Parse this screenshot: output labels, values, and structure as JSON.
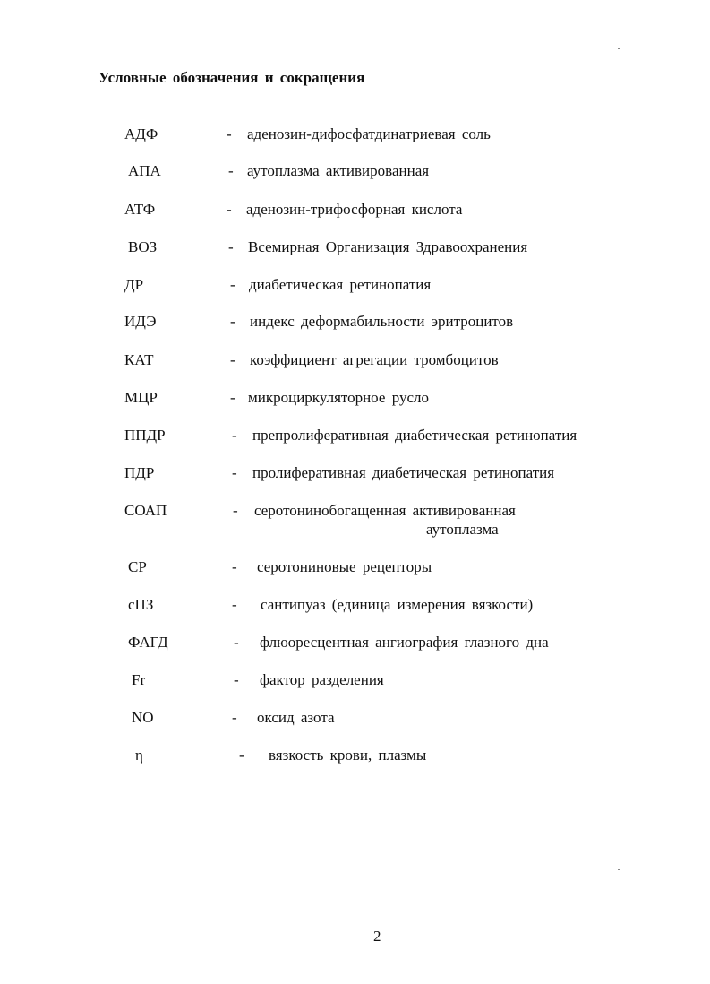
{
  "title": "Условные обозначения и сокращения",
  "entries": [
    {
      "abbr": "АДФ",
      "definition": "аденозин-дифосфатдинатриевая соль"
    },
    {
      "abbr": "АПА",
      "definition": "аутоплазма активированная"
    },
    {
      "abbr": "АТФ",
      "definition": "аденозин-трифосфорная кислота"
    },
    {
      "abbr": "ВОЗ",
      "definition": "Всемирная Организация Здравоохранения"
    },
    {
      "abbr": "ДР",
      "definition": "диабетическая ретинопатия"
    },
    {
      "abbr": "ИДЭ",
      "definition": "индекс деформабильности эритроцитов"
    },
    {
      "abbr": "КАТ",
      "definition": "коэффициент агрегации тромбоцитов"
    },
    {
      "abbr": "МЦР",
      "definition": "микроциркуляторное русло"
    },
    {
      "abbr": "ППДР",
      "definition": "препролиферативная диабетическая ретинопатия"
    },
    {
      "abbr": "ПДР",
      "definition": "пролиферативная диабетическая ретинопатия"
    },
    {
      "abbr": "СОАП",
      "definition": "серотонинобогащенная активированная",
      "definition_cont": "аутоплазма"
    },
    {
      "abbr": "СР",
      "definition": "серотониновые рецепторы"
    },
    {
      "abbr": "сПЗ",
      "definition": "сантипуаз (единица измерения вязкости)"
    },
    {
      "abbr": "ФАГД",
      "definition": "флюоресцентная ангиография глазного дна"
    },
    {
      "abbr": "Fr",
      "definition": "фактор разделения"
    },
    {
      "abbr": "NO",
      "definition": "оксид азота"
    },
    {
      "abbr": "η",
      "definition": "вязкость крови, плазмы"
    }
  ],
  "separator": "-",
  "page_number": "2"
}
